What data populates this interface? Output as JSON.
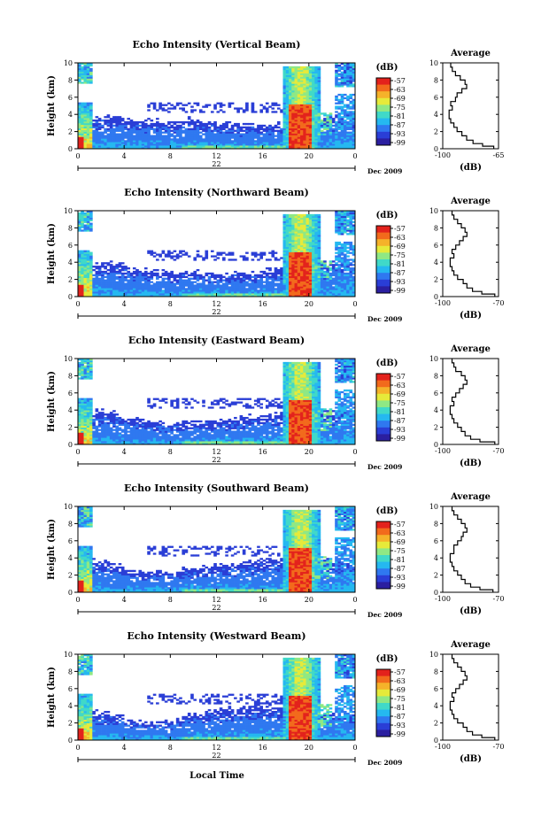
{
  "figure": {
    "xlabel_bottom": "Local Time",
    "date_label": "Dec 2009",
    "day_label": "22",
    "units_label": "(dB)",
    "avg_title": "Average",
    "colors": {
      "scale": [
        "#2b1fa0",
        "#2a3ed6",
        "#2f78f0",
        "#25b8f0",
        "#40d9c8",
        "#8fe884",
        "#e6ea3a",
        "#f5b22a",
        "#f26a1c",
        "#e3221c"
      ]
    }
  },
  "chart_data": [
    {
      "type": "heatmap",
      "title": "Echo Intensity (Vertical Beam)",
      "ylabel": "Height (km)",
      "xlim": [
        0,
        24
      ],
      "ylim": [
        0,
        10
      ],
      "x_ticks": [
        "0",
        "4",
        "8",
        "12",
        "16",
        "20",
        "0"
      ],
      "y_ticks": [
        "0",
        "2",
        "4",
        "6",
        "8",
        "10"
      ],
      "colorbar": {
        "label": "(dB)",
        "ticks": [
          "-57",
          "-63",
          "-69",
          "-75",
          "-81",
          "-87",
          "-93",
          "-99"
        ]
      },
      "average_profile": {
        "xlabel": "(dB)",
        "xlim": [
          -100,
          -65
        ],
        "x_ticks": [
          "-100",
          "-65"
        ],
        "y_ticks": [
          "0",
          "2",
          "4",
          "6",
          "8",
          "10"
        ],
        "height_km": [
          0,
          0.3,
          0.6,
          1.0,
          1.5,
          2.0,
          2.5,
          3.0,
          3.5,
          4.0,
          4.5,
          5.0,
          5.5,
          6.0,
          6.5,
          7.0,
          7.5,
          8.0,
          8.5,
          9.0,
          9.5
        ],
        "values_db": [
          -68,
          -75,
          -81,
          -85,
          -88,
          -91,
          -93,
          -95,
          -96,
          -96,
          -94,
          -95,
          -92,
          -91,
          -88,
          -85,
          -86,
          -89,
          -92,
          -94,
          -95
        ]
      }
    },
    {
      "type": "heatmap",
      "title": "Echo Intensity (Northward Beam)",
      "ylabel": "Height (km)",
      "xlim": [
        0,
        24
      ],
      "ylim": [
        0,
        10
      ],
      "x_ticks": [
        "0",
        "4",
        "8",
        "12",
        "16",
        "20",
        "0"
      ],
      "y_ticks": [
        "0",
        "2",
        "4",
        "6",
        "8",
        "10"
      ],
      "colorbar": {
        "label": "(dB)",
        "ticks": [
          "-57",
          "-63",
          "-69",
          "-75",
          "-81",
          "-87",
          "-93",
          "-99"
        ]
      },
      "average_profile": {
        "xlabel": "(dB)",
        "xlim": [
          -100,
          -70
        ],
        "x_ticks": [
          "-100",
          "-70"
        ],
        "y_ticks": [
          "0",
          "2",
          "4",
          "6",
          "8",
          "10"
        ],
        "height_km": [
          0,
          0.3,
          0.6,
          1.0,
          1.5,
          2.0,
          2.5,
          3.0,
          3.5,
          4.0,
          4.5,
          5.0,
          5.5,
          6.0,
          6.5,
          7.0,
          7.5,
          8.0,
          8.5,
          9.0,
          9.5
        ],
        "values_db": [
          -72,
          -79,
          -84,
          -87,
          -89,
          -92,
          -94,
          -95,
          -96,
          -96,
          -94,
          -95,
          -93,
          -91,
          -89,
          -87,
          -88,
          -90,
          -92,
          -94,
          -95
        ]
      }
    },
    {
      "type": "heatmap",
      "title": "Echo Intensity (Eastward Beam)",
      "ylabel": "Height (km)",
      "xlim": [
        0,
        24
      ],
      "ylim": [
        0,
        10
      ],
      "x_ticks": [
        "0",
        "4",
        "8",
        "12",
        "16",
        "20",
        "0"
      ],
      "y_ticks": [
        "0",
        "2",
        "4",
        "6",
        "8",
        "10"
      ],
      "colorbar": {
        "label": "(dB)",
        "ticks": [
          "-57",
          "-63",
          "-69",
          "-75",
          "-81",
          "-87",
          "-93",
          "-99"
        ]
      },
      "average_profile": {
        "xlabel": "(dB)",
        "xlim": [
          -100,
          -70
        ],
        "x_ticks": [
          "-100",
          "-70"
        ],
        "y_ticks": [
          "0",
          "2",
          "4",
          "6",
          "8",
          "10"
        ],
        "height_km": [
          0,
          0.3,
          0.6,
          1.0,
          1.5,
          2.0,
          2.5,
          3.0,
          3.5,
          4.0,
          4.5,
          5.0,
          5.5,
          6.0,
          6.5,
          7.0,
          7.5,
          8.0,
          8.5,
          9.0,
          9.5
        ],
        "values_db": [
          -72,
          -80,
          -85,
          -88,
          -90,
          -92,
          -94,
          -95,
          -96,
          -96,
          -94,
          -95,
          -93,
          -91,
          -89,
          -87,
          -88,
          -90,
          -93,
          -94,
          -95
        ]
      }
    },
    {
      "type": "heatmap",
      "title": "Echo Intensity (Southward Beam)",
      "ylabel": "Height (km)",
      "xlim": [
        0,
        24
      ],
      "ylim": [
        0,
        10
      ],
      "x_ticks": [
        "0",
        "4",
        "8",
        "12",
        "16",
        "20",
        "0"
      ],
      "y_ticks": [
        "0",
        "2",
        "4",
        "6",
        "8",
        "10"
      ],
      "colorbar": {
        "label": "(dB)",
        "ticks": [
          "-57",
          "-63",
          "-69",
          "-75",
          "-81",
          "-87",
          "-93",
          "-99"
        ]
      },
      "average_profile": {
        "xlabel": "(dB)",
        "xlim": [
          -100,
          -70
        ],
        "x_ticks": [
          "-100",
          "-70"
        ],
        "y_ticks": [
          "0",
          "2",
          "4",
          "6",
          "8",
          "10"
        ],
        "height_km": [
          0,
          0.3,
          0.6,
          1.0,
          1.5,
          2.0,
          2.5,
          3.0,
          3.5,
          4.0,
          4.5,
          5.0,
          5.5,
          6.0,
          6.5,
          7.0,
          7.5,
          8.0,
          8.5,
          9.0,
          9.5
        ],
        "values_db": [
          -73,
          -80,
          -85,
          -88,
          -90,
          -92,
          -94,
          -95,
          -96,
          -96,
          -94,
          -94,
          -92,
          -90,
          -89,
          -87,
          -88,
          -90,
          -92,
          -94,
          -95
        ]
      }
    },
    {
      "type": "heatmap",
      "title": "Echo Intensity (Westward Beam)",
      "ylabel": "Height (km)",
      "xlim": [
        0,
        24
      ],
      "ylim": [
        0,
        10
      ],
      "x_ticks": [
        "0",
        "4",
        "8",
        "12",
        "16",
        "20",
        "0"
      ],
      "y_ticks": [
        "0",
        "2",
        "4",
        "6",
        "8",
        "10"
      ],
      "colorbar": {
        "label": "(dB)",
        "ticks": [
          "-57",
          "-63",
          "-69",
          "-75",
          "-81",
          "-87",
          "-93",
          "-99"
        ]
      },
      "average_profile": {
        "xlabel": "(dB)",
        "xlim": [
          -100,
          -70
        ],
        "x_ticks": [
          "-100",
          "-70"
        ],
        "y_ticks": [
          "0",
          "2",
          "4",
          "6",
          "8",
          "10"
        ],
        "height_km": [
          0,
          0.3,
          0.6,
          1.0,
          1.5,
          2.0,
          2.5,
          3.0,
          3.5,
          4.0,
          4.5,
          5.0,
          5.5,
          6.0,
          6.5,
          7.0,
          7.5,
          8.0,
          8.5,
          9.0,
          9.5
        ],
        "values_db": [
          -72,
          -79,
          -84,
          -87,
          -89,
          -92,
          -94,
          -95,
          -96,
          -96,
          -94,
          -95,
          -93,
          -91,
          -89,
          -87,
          -88,
          -90,
          -92,
          -94,
          -95
        ]
      }
    }
  ]
}
